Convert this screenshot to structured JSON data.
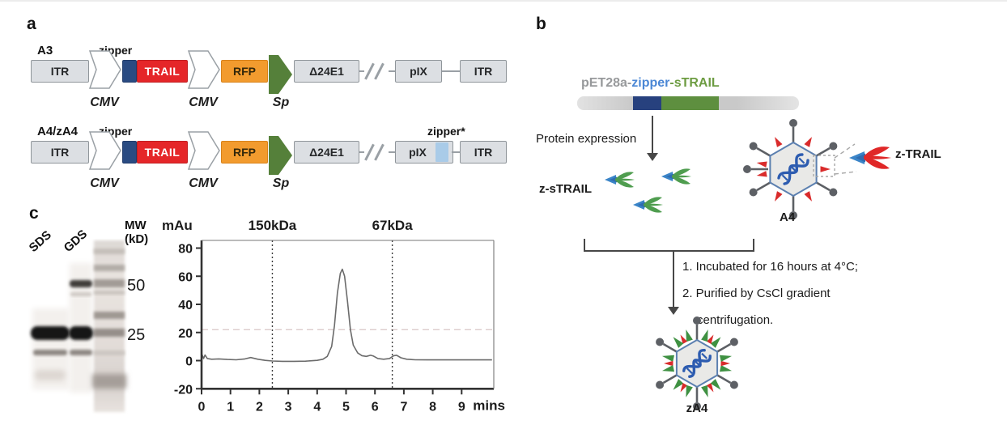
{
  "colors": {
    "zipper_navy": "#2a4b82",
    "trail_red": "#e52629",
    "rfp_orange": "#f29b2e",
    "sp_green": "#55803a",
    "gray_box": "#dcdfe3",
    "zipper_star_blue": "#a9cbe8",
    "title_gray": "#97999b",
    "title_blue": "#4b87d5",
    "title_green": "#6d9c42",
    "trimer_green": "#4f9d4f",
    "trimer_red": "#e02828",
    "stem_blue": "#3b85c8",
    "virus_fiber_gray": "#5d6065",
    "virus_outline_blue": "#5c80b0",
    "dna_blue": "#2d5cb0"
  },
  "panel_a": {
    "label": "a",
    "rows": [
      {
        "name": "A3",
        "zipper": "zipper",
        "itr_l": "ITR",
        "cmv1": "CMV",
        "trail": "TRAIL",
        "cmv2": "CMV",
        "rfp": "RFP",
        "sp": "Sp",
        "e1": "Δ24E1",
        "pix": "pIX",
        "itr_r": "ITR"
      },
      {
        "name": "A4/zA4",
        "zipper": "zipper",
        "zipper_star": "zipper*",
        "itr_l": "ITR",
        "cmv1": "CMV",
        "trail": "TRAIL",
        "cmv2": "CMV",
        "rfp": "RFP",
        "sp": "Sp",
        "e1": "Δ24E1",
        "pix": "pIX",
        "itr_r": "ITR"
      }
    ]
  },
  "panel_b": {
    "label": "b",
    "plasmid": {
      "vector": "pET28a",
      "d1": "-",
      "zipper": "zipper",
      "d2": "-",
      "strail": "sTRAIL"
    },
    "protein_expression": "Protein expression",
    "z_strail": "z-sTRAIL",
    "a4": "A4",
    "z_trail": "z-TRAIL",
    "step1": "1. Incubated for 16 hours at 4°C;",
    "step2": "2. Purified by CsCl gradient",
    "step3": "centrifugation.",
    "za4": "zA4"
  },
  "panel_c": {
    "label": "c",
    "gel": {
      "lane1": "SDS",
      "lane2": "GDS",
      "mw": "MW",
      "kd": "(kD)",
      "marker50": "50",
      "marker25": "25"
    }
  },
  "chart_data": {
    "type": "line",
    "title": "",
    "ylabel": "mAu",
    "xlabel": "mins",
    "xlim": [
      0,
      10.1
    ],
    "ylim": [
      -20,
      85
    ],
    "yticks": [
      80,
      60,
      40,
      20,
      0,
      -20
    ],
    "xticks": [
      0,
      1,
      2,
      3,
      4,
      5,
      6,
      7,
      8,
      9
    ],
    "vlines": [
      {
        "x": 2.45,
        "label": "150kDa"
      },
      {
        "x": 6.6,
        "label": "67kDa"
      }
    ],
    "hline": 22,
    "legend": "none",
    "series": [
      {
        "name": "UV absorbance",
        "points": [
          [
            0,
            5
          ],
          [
            0.07,
            1.5
          ],
          [
            0.12,
            4
          ],
          [
            0.2,
            1.5
          ],
          [
            0.35,
            1
          ],
          [
            0.6,
            1.2
          ],
          [
            0.9,
            0.8
          ],
          [
            1.2,
            0.6
          ],
          [
            1.5,
            1.2
          ],
          [
            1.7,
            2.2
          ],
          [
            1.95,
            1
          ],
          [
            2.2,
            0.2
          ],
          [
            2.45,
            -0.3
          ],
          [
            2.8,
            -0.5
          ],
          [
            3.2,
            -0.5
          ],
          [
            3.6,
            -0.4
          ],
          [
            4.0,
            0.2
          ],
          [
            4.2,
            1
          ],
          [
            4.35,
            3
          ],
          [
            4.5,
            10
          ],
          [
            4.6,
            25
          ],
          [
            4.7,
            48
          ],
          [
            4.8,
            62
          ],
          [
            4.87,
            65
          ],
          [
            4.95,
            60
          ],
          [
            5.05,
            42
          ],
          [
            5.15,
            22
          ],
          [
            5.25,
            11
          ],
          [
            5.4,
            5.5
          ],
          [
            5.55,
            3.5
          ],
          [
            5.7,
            3
          ],
          [
            5.85,
            3.8
          ],
          [
            5.95,
            3.2
          ],
          [
            6.1,
            1.5
          ],
          [
            6.3,
            1
          ],
          [
            6.5,
            1.5
          ],
          [
            6.65,
            3.5
          ],
          [
            6.75,
            3.8
          ],
          [
            6.9,
            2
          ],
          [
            7.1,
            1
          ],
          [
            7.4,
            0.6
          ],
          [
            7.8,
            0.5
          ],
          [
            8.2,
            0.5
          ],
          [
            8.6,
            0.5
          ],
          [
            9.0,
            0.5
          ],
          [
            9.4,
            0.5
          ],
          [
            9.8,
            0.5
          ],
          [
            10.05,
            0.5
          ]
        ]
      }
    ]
  }
}
